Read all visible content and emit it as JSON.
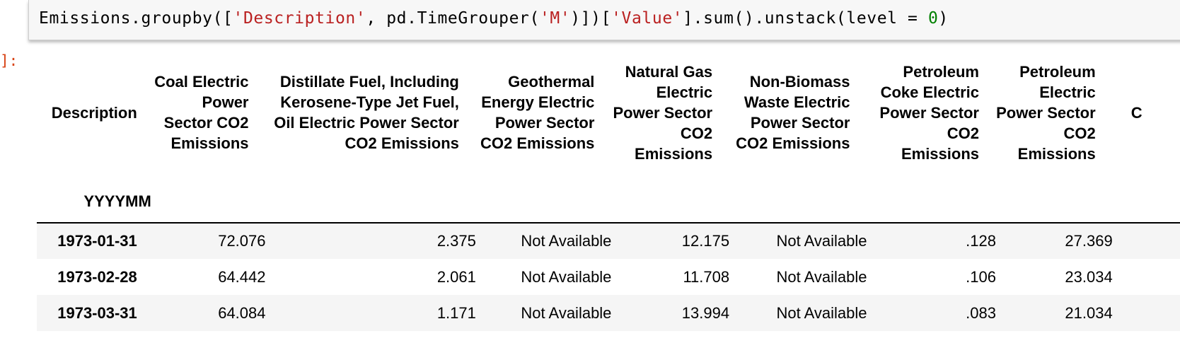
{
  "code_cell": {
    "code_parts": [
      {
        "text": "Emissions.groupby([",
        "kind": "plain"
      },
      {
        "text": "'Description'",
        "kind": "str"
      },
      {
        "text": ", pd.TimeGrouper(",
        "kind": "plain"
      },
      {
        "text": "'M'",
        "kind": "str"
      },
      {
        "text": ")])[",
        "kind": "plain"
      },
      {
        "text": "'Value'",
        "kind": "str"
      },
      {
        "text": "].sum().unstack(level = ",
        "kind": "plain"
      },
      {
        "text": "0",
        "kind": "num"
      },
      {
        "text": ")",
        "kind": "plain"
      }
    ]
  },
  "output": {
    "prompt": "]:",
    "table": {
      "columns_name": "Description",
      "index_name": "YYYYMM",
      "columns": [
        "Coal Electric Power Sector CO2 Emissions",
        "Distillate Fuel, Including Kerosene-Type Jet Fuel, Oil Electric Power Sector CO2 Emissions",
        "Geothermal Energy Electric Power Sector CO2 Emissions",
        "Natural Gas Electric Power Sector CO2 Emissions",
        "Non-Biomass Waste Electric Power Sector CO2 Emissions",
        "Petroleum Coke Electric Power Sector CO2 Emissions",
        "Petroleum Electric Power Sector CO2 Emissions",
        "C"
      ],
      "rows": [
        {
          "index": "1973-01-31",
          "values": [
            "72.076",
            "2.375",
            "Not Available",
            "12.175",
            "Not Available",
            ".128",
            "27.369",
            ""
          ]
        },
        {
          "index": "1973-02-28",
          "values": [
            "64.442",
            "2.061",
            "Not Available",
            "11.708",
            "Not Available",
            ".106",
            "23.034",
            ""
          ]
        },
        {
          "index": "1973-03-31",
          "values": [
            "64.084",
            "1.171",
            "Not Available",
            "13.994",
            "Not Available",
            ".083",
            "21.034",
            ""
          ]
        }
      ]
    }
  }
}
